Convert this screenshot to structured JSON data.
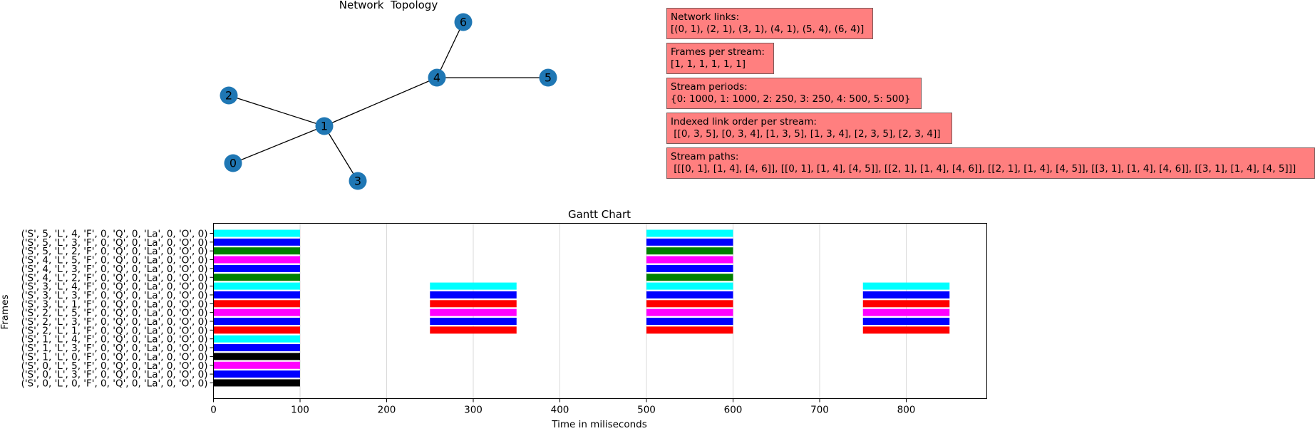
{
  "chart_data": [
    {
      "type": "network",
      "title": "Network  Topology",
      "nodes": [
        0,
        1,
        2,
        3,
        4,
        5,
        6
      ],
      "links": [
        [
          0,
          1
        ],
        [
          2,
          1
        ],
        [
          3,
          1
        ],
        [
          4,
          1
        ],
        [
          5,
          4
        ],
        [
          6,
          4
        ]
      ],
      "node_color": "#1f77b4"
    },
    {
      "type": "gantt",
      "title": "Gantt Chart",
      "xlabel": "Time in miliseconds",
      "ylabel": "Frames",
      "xlim": [
        0,
        893
      ],
      "xticks": [
        0,
        100,
        200,
        300,
        400,
        500,
        600,
        700,
        800
      ],
      "grid": "vertical",
      "categories": [
        "('S', 0, 'L', 0, 'F', 0, 'Q', 0, 'La', 0, 'O', 0)",
        "('S', 0, 'L', 3, 'F', 0, 'Q', 0, 'La', 0, 'O', 0)",
        "('S', 0, 'L', 5, 'F', 0, 'Q', 0, 'La', 0, 'O', 0)",
        "('S', 1, 'L', 0, 'F', 0, 'Q', 0, 'La', 0, 'O', 0)",
        "('S', 1, 'L', 3, 'F', 0, 'Q', 0, 'La', 0, 'O', 0)",
        "('S', 1, 'L', 4, 'F', 0, 'Q', 0, 'La', 0, 'O', 0)",
        "('S', 2, 'L', 1, 'F', 0, 'Q', 0, 'La', 0, 'O', 0)",
        "('S', 2, 'L', 3, 'F', 0, 'Q', 0, 'La', 0, 'O', 0)",
        "('S', 2, 'L', 5, 'F', 0, 'Q', 0, 'La', 0, 'O', 0)",
        "('S', 3, 'L', 1, 'F', 0, 'Q', 0, 'La', 0, 'O', 0)",
        "('S', 3, 'L', 3, 'F', 0, 'Q', 0, 'La', 0, 'O', 0)",
        "('S', 3, 'L', 4, 'F', 0, 'Q', 0, 'La', 0, 'O', 0)",
        "('S', 4, 'L', 2, 'F', 0, 'Q', 0, 'La', 0, 'O', 0)",
        "('S', 4, 'L', 3, 'F', 0, 'Q', 0, 'La', 0, 'O', 0)",
        "('S', 4, 'L', 5, 'F', 0, 'Q', 0, 'La', 0, 'O', 0)",
        "('S', 5, 'L', 2, 'F', 0, 'Q', 0, 'La', 0, 'O', 0)",
        "('S', 5, 'L', 3, 'F', 0, 'Q', 0, 'La', 0, 'O', 0)",
        "('S', 5, 'L', 4, 'F', 0, 'Q', 0, 'La', 0, 'O', 0)"
      ],
      "colors": [
        "#000000",
        "#0000ff",
        "#ff00ff",
        "#000000",
        "#0000ff",
        "#00ffff",
        "#ff0000",
        "#0000ff",
        "#ff00ff",
        "#ff0000",
        "#0000ff",
        "#00ffff",
        "#008000",
        "#0000ff",
        "#ff00ff",
        "#008000",
        "#0000ff",
        "#00ffff"
      ],
      "bars": [
        [
          [
            0,
            100
          ]
        ],
        [
          [
            0,
            100
          ]
        ],
        [
          [
            0,
            100
          ]
        ],
        [
          [
            0,
            100
          ]
        ],
        [
          [
            0,
            100
          ]
        ],
        [
          [
            0,
            100
          ]
        ],
        [
          [
            0,
            100
          ],
          [
            250,
            350
          ],
          [
            500,
            600
          ],
          [
            750,
            850
          ]
        ],
        [
          [
            0,
            100
          ],
          [
            250,
            350
          ],
          [
            500,
            600
          ],
          [
            750,
            850
          ]
        ],
        [
          [
            0,
            100
          ],
          [
            250,
            350
          ],
          [
            500,
            600
          ],
          [
            750,
            850
          ]
        ],
        [
          [
            0,
            100
          ],
          [
            250,
            350
          ],
          [
            500,
            600
          ],
          [
            750,
            850
          ]
        ],
        [
          [
            0,
            100
          ],
          [
            250,
            350
          ],
          [
            500,
            600
          ],
          [
            750,
            850
          ]
        ],
        [
          [
            0,
            100
          ],
          [
            250,
            350
          ],
          [
            500,
            600
          ],
          [
            750,
            850
          ]
        ],
        [
          [
            0,
            100
          ],
          [
            500,
            600
          ]
        ],
        [
          [
            0,
            100
          ],
          [
            500,
            600
          ]
        ],
        [
          [
            0,
            100
          ],
          [
            500,
            600
          ]
        ],
        [
          [
            0,
            100
          ],
          [
            500,
            600
          ]
        ],
        [
          [
            0,
            100
          ],
          [
            500,
            600
          ]
        ],
        [
          [
            0,
            100
          ],
          [
            500,
            600
          ]
        ]
      ]
    }
  ],
  "info_boxes": [
    {
      "id": "network-links-box",
      "text": "Network links:\n[(0, 1), (2, 1), (3, 1), (4, 1), (5, 4), (6, 4)]"
    },
    {
      "id": "frames-per-stream-box",
      "text": "Frames per stream:\n[1, 1, 1, 1, 1, 1]"
    },
    {
      "id": "stream-periods-box",
      "text": "Stream periods:\n{0: 1000, 1: 1000, 2: 250, 3: 250, 4: 500, 5: 500}"
    },
    {
      "id": "indexed-link-order-box",
      "text": "Indexed link order per stream:\n [[0, 3, 5], [0, 3, 4], [1, 3, 5], [1, 3, 4], [2, 3, 5], [2, 3, 4]]"
    },
    {
      "id": "stream-paths-box",
      "text": "Stream paths:\n [[[0, 1], [1, 4], [4, 6]], [[0, 1], [1, 4], [4, 5]], [[2, 1], [1, 4], [4, 6]], [[2, 1], [1, 4], [4, 5]], [[3, 1], [1, 4], [4, 6]], [[3, 1], [1, 4], [4, 5]]]"
    }
  ]
}
